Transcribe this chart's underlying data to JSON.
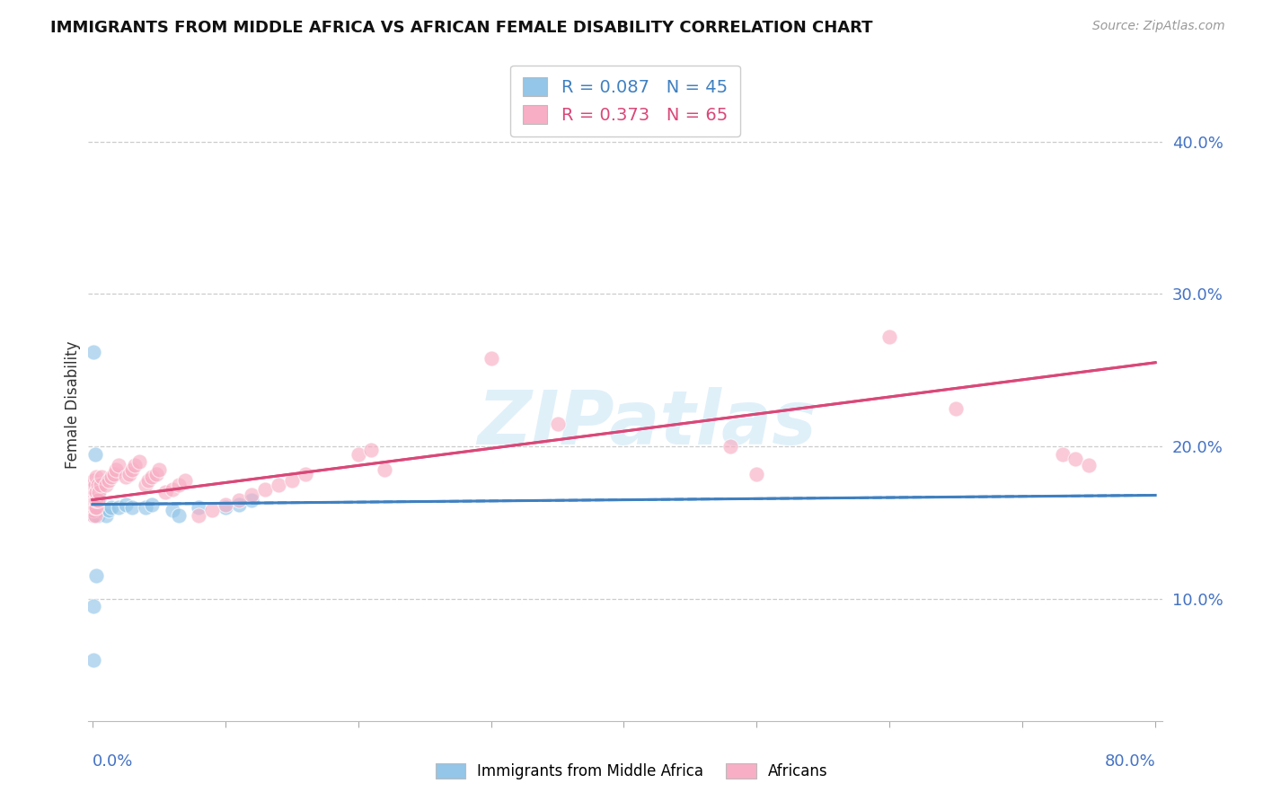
{
  "title": "IMMIGRANTS FROM MIDDLE AFRICA VS AFRICAN FEMALE DISABILITY CORRELATION CHART",
  "source": "Source: ZipAtlas.com",
  "ylabel": "Female Disability",
  "ytick_labels": [
    "10.0%",
    "20.0%",
    "30.0%",
    "40.0%"
  ],
  "ytick_values": [
    0.1,
    0.2,
    0.3,
    0.4
  ],
  "xlim": [
    -0.003,
    0.805
  ],
  "ylim": [
    0.02,
    0.435
  ],
  "blue_R": 0.087,
  "blue_N": 45,
  "pink_R": 0.373,
  "pink_N": 65,
  "blue_fill_color": "#93c6e8",
  "pink_fill_color": "#f8aec4",
  "blue_line_color": "#3f80c0",
  "pink_line_color": "#d94878",
  "watermark": "ZIPatlas",
  "legend_label_blue": "Immigrants from Middle Africa",
  "legend_label_pink": "Africans",
  "blue_scatter_x": [
    0.001,
    0.001,
    0.001,
    0.001,
    0.001,
    0.001,
    0.001,
    0.001,
    0.001,
    0.001,
    0.002,
    0.002,
    0.002,
    0.002,
    0.002,
    0.002,
    0.002,
    0.003,
    0.003,
    0.003,
    0.003,
    0.004,
    0.004,
    0.004,
    0.005,
    0.005,
    0.01,
    0.012,
    0.014,
    0.02,
    0.025,
    0.03,
    0.04,
    0.045,
    0.06,
    0.065,
    0.08,
    0.1,
    0.11,
    0.12,
    0.001,
    0.002,
    0.003,
    0.001,
    0.001
  ],
  "blue_scatter_y": [
    0.155,
    0.158,
    0.16,
    0.162,
    0.163,
    0.165,
    0.165,
    0.168,
    0.17,
    0.155,
    0.155,
    0.157,
    0.16,
    0.162,
    0.165,
    0.168,
    0.172,
    0.155,
    0.158,
    0.16,
    0.175,
    0.155,
    0.162,
    0.17,
    0.158,
    0.165,
    0.155,
    0.158,
    0.16,
    0.16,
    0.162,
    0.16,
    0.16,
    0.162,
    0.158,
    0.155,
    0.16,
    0.16,
    0.162,
    0.165,
    0.262,
    0.195,
    0.115,
    0.095,
    0.06
  ],
  "pink_scatter_x": [
    0.001,
    0.001,
    0.001,
    0.001,
    0.001,
    0.001,
    0.001,
    0.001,
    0.001,
    0.001,
    0.002,
    0.002,
    0.002,
    0.002,
    0.002,
    0.003,
    0.003,
    0.003,
    0.003,
    0.004,
    0.004,
    0.005,
    0.006,
    0.007,
    0.01,
    0.012,
    0.014,
    0.016,
    0.018,
    0.02,
    0.025,
    0.028,
    0.03,
    0.032,
    0.035,
    0.04,
    0.042,
    0.045,
    0.048,
    0.05,
    0.055,
    0.06,
    0.065,
    0.07,
    0.08,
    0.09,
    0.1,
    0.11,
    0.12,
    0.13,
    0.14,
    0.15,
    0.16,
    0.2,
    0.21,
    0.22,
    0.3,
    0.35,
    0.48,
    0.5,
    0.6,
    0.65,
    0.73,
    0.74,
    0.75
  ],
  "pink_scatter_y": [
    0.155,
    0.158,
    0.16,
    0.162,
    0.165,
    0.168,
    0.17,
    0.172,
    0.175,
    0.178,
    0.155,
    0.16,
    0.165,
    0.17,
    0.175,
    0.16,
    0.165,
    0.17,
    0.18,
    0.165,
    0.175,
    0.17,
    0.175,
    0.18,
    0.175,
    0.178,
    0.18,
    0.182,
    0.185,
    0.188,
    0.18,
    0.182,
    0.185,
    0.188,
    0.19,
    0.175,
    0.178,
    0.18,
    0.182,
    0.185,
    0.17,
    0.172,
    0.175,
    0.178,
    0.155,
    0.158,
    0.162,
    0.165,
    0.168,
    0.172,
    0.175,
    0.178,
    0.182,
    0.195,
    0.198,
    0.185,
    0.258,
    0.215,
    0.2,
    0.182,
    0.272,
    0.225,
    0.195,
    0.192,
    0.188
  ]
}
